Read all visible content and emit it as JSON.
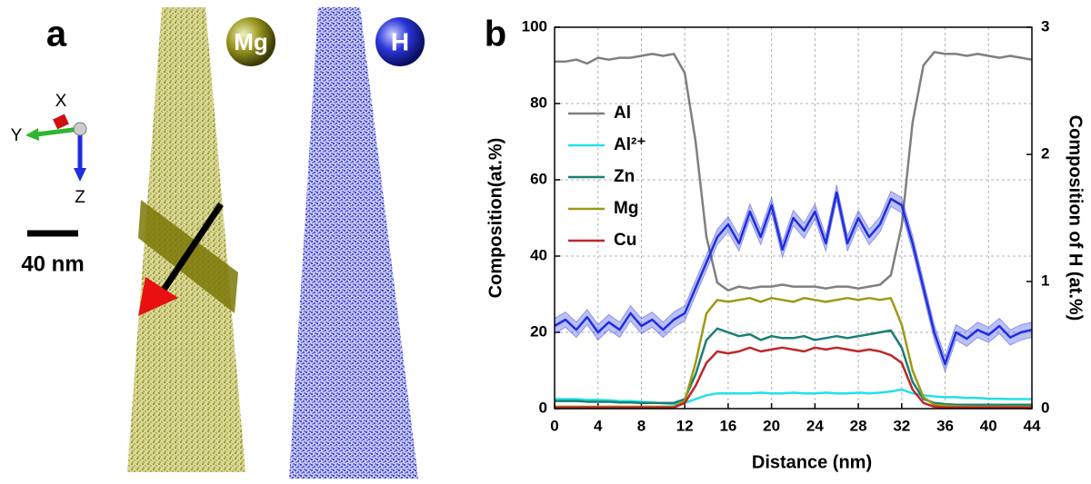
{
  "panel_a": {
    "label": "a",
    "atoms": [
      "Mg",
      "H"
    ],
    "axes": [
      "X",
      "Y",
      "Z"
    ],
    "scale_bar": "40 nm"
  },
  "chart_data": {
    "type": "line",
    "panel_label": "b",
    "xlabel": "Distance (nm)",
    "ylabel": "Composition(at.%)",
    "y2label": "Composition of H (at.%)",
    "x": [
      0,
      1,
      2,
      3,
      4,
      5,
      6,
      7,
      8,
      9,
      10,
      11,
      12,
      13,
      14,
      15,
      16,
      17,
      18,
      19,
      20,
      21,
      22,
      23,
      24,
      25,
      26,
      27,
      28,
      29,
      30,
      31,
      32,
      33,
      34,
      35,
      36,
      37,
      38,
      39,
      40,
      41,
      42,
      43,
      44
    ],
    "xlim": [
      0,
      44
    ],
    "xticks": [
      0,
      4,
      8,
      12,
      16,
      20,
      24,
      28,
      32,
      36,
      40,
      44
    ],
    "ylim": [
      0,
      100
    ],
    "yticks": [
      0,
      20,
      40,
      60,
      80,
      100
    ],
    "y2lim": [
      0,
      3
    ],
    "y2ticks": [
      0,
      1,
      2,
      3
    ],
    "grid": true,
    "legend": "upper left",
    "series": [
      {
        "name": "Al",
        "color": "#7f7f7f",
        "values": [
          91,
          91,
          91.5,
          90.5,
          92,
          91.5,
          92,
          92,
          92.5,
          93,
          92.5,
          93,
          88,
          70,
          45,
          33,
          31,
          32,
          31.5,
          32,
          32,
          32.5,
          32,
          32,
          32,
          31.5,
          32,
          32,
          31.5,
          32,
          32.5,
          35,
          48,
          75,
          90,
          93.5,
          93,
          93,
          92.5,
          93,
          92.5,
          92,
          92.5,
          92,
          91.5
        ]
      },
      {
        "name": "Al²⁺",
        "color": "#22e0e8",
        "values": [
          2.5,
          2.5,
          2.5,
          2.3,
          2.3,
          2.2,
          2,
          2,
          1.8,
          1.6,
          1.4,
          1.2,
          1.5,
          2.5,
          3.5,
          4,
          4,
          4,
          4,
          4.2,
          4,
          4,
          4.2,
          4,
          4,
          4.2,
          4,
          4,
          4.2,
          4,
          4.2,
          4.5,
          5,
          4,
          3.5,
          3.2,
          3,
          3,
          2.8,
          2.8,
          2.6,
          2.6,
          2.5,
          2.5,
          2.5
        ]
      },
      {
        "name": "Zn",
        "color": "#1a7f74",
        "values": [
          2,
          2,
          2,
          1.8,
          1.8,
          1.8,
          1.6,
          1.6,
          1.5,
          1.5,
          1.5,
          1.5,
          2.5,
          9,
          18,
          21,
          20,
          19,
          19.5,
          18,
          19,
          18.5,
          18.5,
          19,
          18,
          18.5,
          19,
          18.5,
          19,
          19.5,
          20,
          20.5,
          16,
          7,
          2.5,
          1.5,
          1.2,
          1,
          1,
          1,
          1,
          1,
          1,
          1,
          1
        ]
      },
      {
        "name": "Mg",
        "color": "#9c9a14",
        "values": [
          0.5,
          0.5,
          0.5,
          0.5,
          0.5,
          0.5,
          0.5,
          0.5,
          0.5,
          0.5,
          0.5,
          0.5,
          2,
          12,
          25,
          28.5,
          28,
          28.5,
          29,
          28,
          29,
          28.5,
          28,
          29,
          28.5,
          28,
          28.5,
          29,
          28.5,
          29,
          28.5,
          29,
          22,
          10,
          3,
          1,
          0.8,
          0.6,
          0.5,
          0.5,
          0.5,
          0.5,
          0.5,
          0.5,
          0.5
        ]
      },
      {
        "name": "Cu",
        "color": "#c0262a",
        "values": [
          0.3,
          0.3,
          0.3,
          0.3,
          0.3,
          0.3,
          0.3,
          0.3,
          0.3,
          0.3,
          0.3,
          0.3,
          1.5,
          6,
          12,
          15,
          14.5,
          15,
          16,
          15,
          15.5,
          16,
          15.5,
          15,
          16,
          15.5,
          16,
          15.5,
          15,
          15.5,
          15,
          14,
          12,
          5,
          1.5,
          0.5,
          0.3,
          0.3,
          0.3,
          0.3,
          0.3,
          0.3,
          0.3,
          0.3,
          0.3
        ]
      },
      {
        "color": "#1f2de0",
        "axis": "y2",
        "values": [
          0.65,
          0.7,
          0.62,
          0.72,
          0.6,
          0.68,
          0.62,
          0.75,
          0.65,
          0.7,
          0.62,
          0.7,
          0.75,
          0.95,
          1.15,
          1.35,
          1.45,
          1.3,
          1.55,
          1.35,
          1.6,
          1.25,
          1.5,
          1.4,
          1.55,
          1.3,
          1.7,
          1.3,
          1.5,
          1.35,
          1.45,
          1.65,
          1.6,
          1.3,
          0.95,
          0.6,
          0.35,
          0.6,
          0.55,
          0.62,
          0.58,
          0.65,
          0.56,
          0.6,
          0.62
        ],
        "errors": [
          0.06,
          0.06,
          0.06,
          0.06,
          0.06,
          0.06,
          0.06,
          0.06,
          0.06,
          0.06,
          0.06,
          0.06,
          0.06,
          0.06,
          0.06,
          0.06,
          0.06,
          0.06,
          0.06,
          0.06,
          0.06,
          0.06,
          0.06,
          0.06,
          0.06,
          0.06,
          0.06,
          0.06,
          0.06,
          0.06,
          0.06,
          0.06,
          0.06,
          0.06,
          0.06,
          0.06,
          0.06,
          0.06,
          0.06,
          0.06,
          0.06,
          0.06,
          0.06,
          0.06,
          0.06
        ]
      }
    ]
  }
}
